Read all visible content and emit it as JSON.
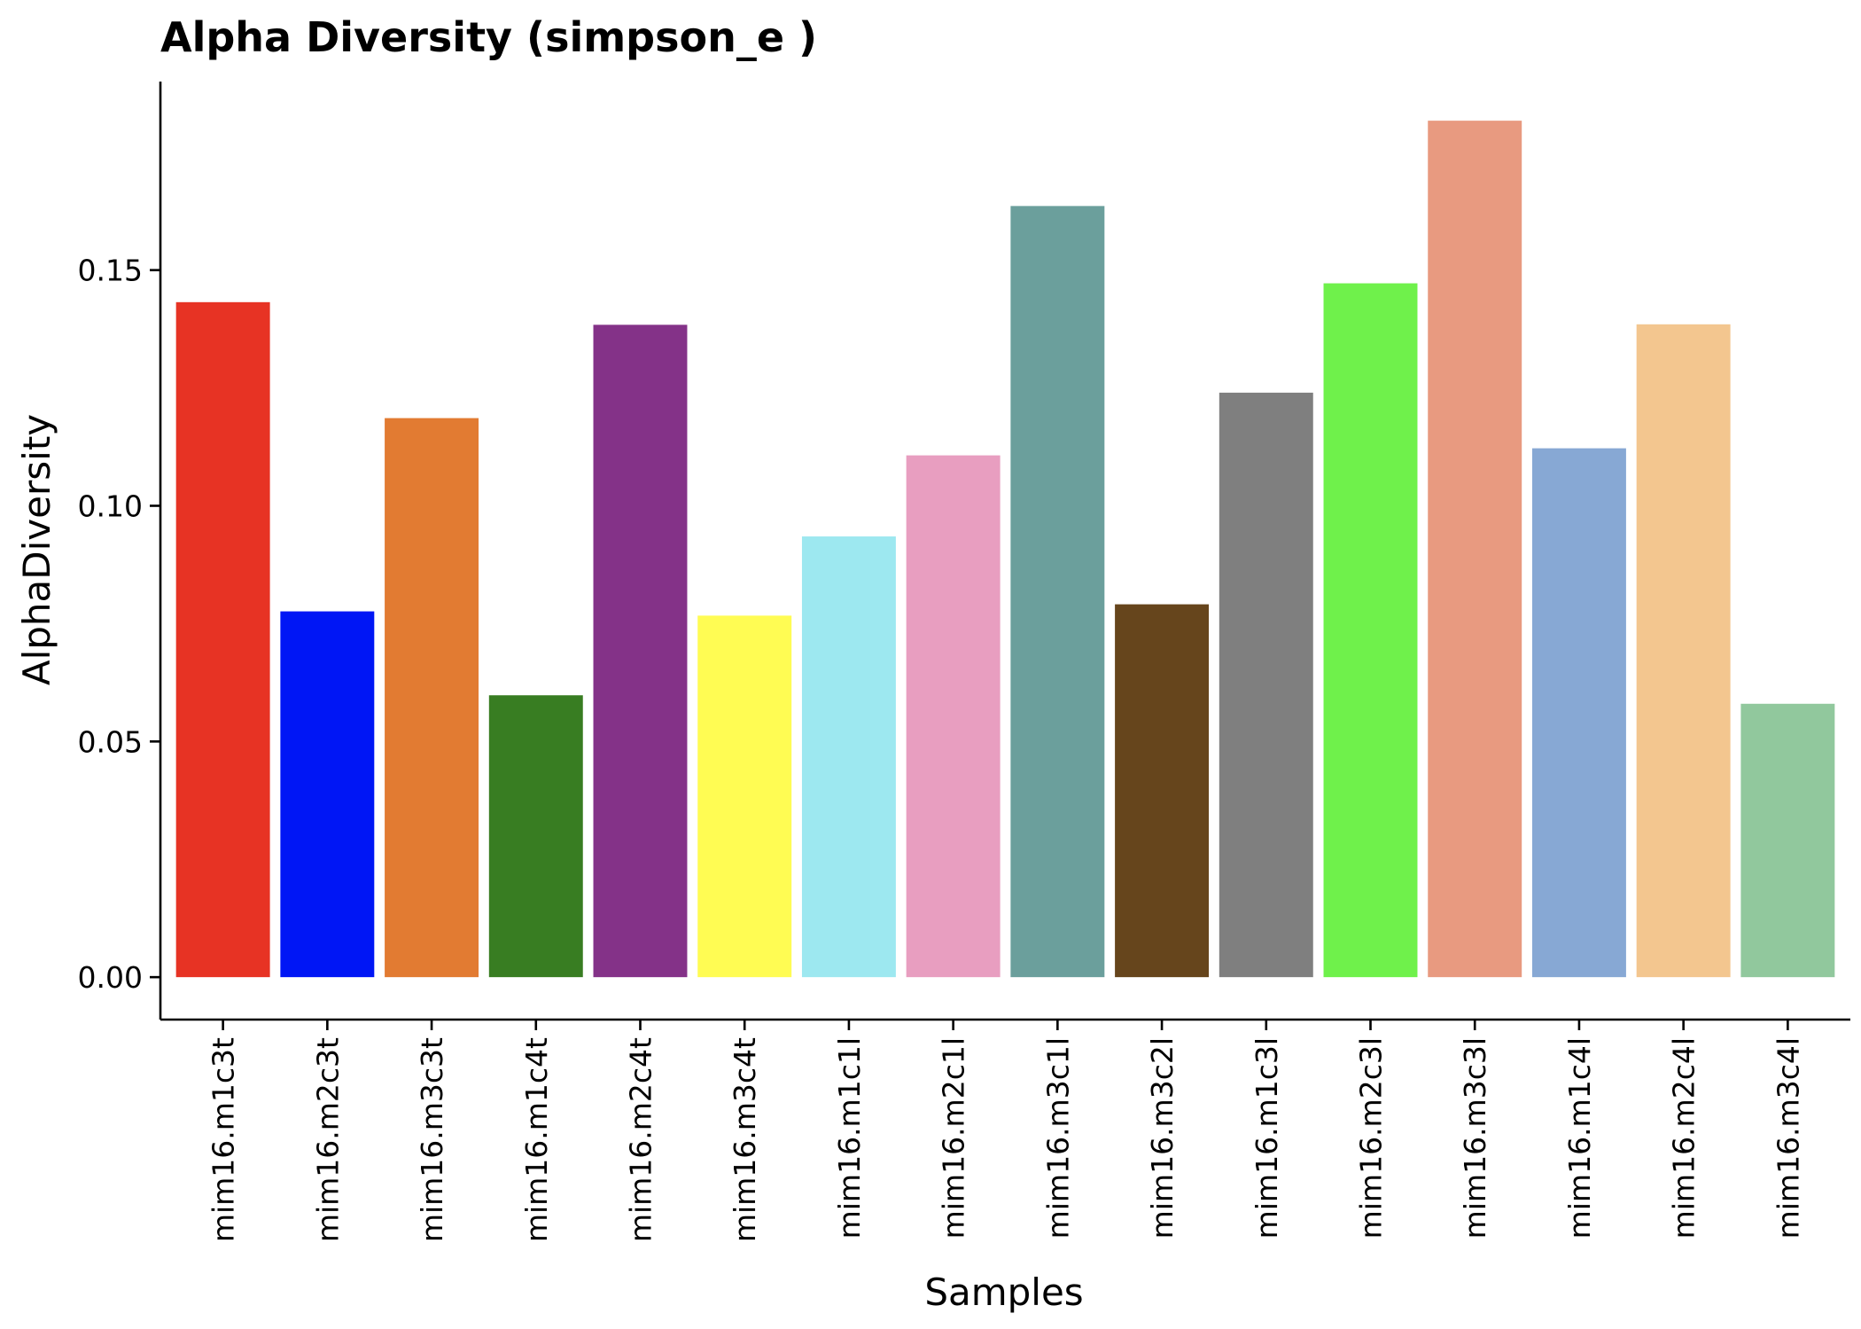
{
  "chart_data": {
    "type": "bar",
    "title": "Alpha Diversity (simpson_e )",
    "xlabel": "Samples",
    "ylabel": "AlphaDiversity",
    "ylim": [
      -0.009,
      0.19
    ],
    "yticks": [
      0.0,
      0.05,
      0.1,
      0.15
    ],
    "ytick_labels": [
      "0.00",
      "0.05",
      "0.10",
      "0.15"
    ],
    "grid": false,
    "legend": "none",
    "categories": [
      "mim16.m1c3t",
      "mim16.m2c3t",
      "mim16.m3c3t",
      "mim16.m1c4t",
      "mim16.m2c4t",
      "mim16.m3c4t",
      "mim16.m1c1l",
      "mim16.m2c1l",
      "mim16.m3c1l",
      "mim16.m3c2l",
      "mim16.m1c3l",
      "mim16.m2c3l",
      "mim16.m3c3l",
      "mim16.m1c4l",
      "mim16.m2c4l",
      "mim16.m3c4l"
    ],
    "values": [
      0.1432,
      0.0776,
      0.1186,
      0.0598,
      0.1384,
      0.0767,
      0.0935,
      0.1107,
      0.1636,
      0.0791,
      0.124,
      0.1472,
      0.1817,
      0.1122,
      0.1385,
      0.058
    ],
    "colors": [
      "#E73324",
      "#0016F5",
      "#E27B32",
      "#387D22",
      "#843288",
      "#FFFC53",
      "#9DE8F0",
      "#E89EC0",
      "#6B9F9C",
      "#66451C",
      "#7F7F7F",
      "#6FF14B",
      "#E89A80",
      "#87A8D4",
      "#F3C68F",
      "#91C89D"
    ]
  }
}
